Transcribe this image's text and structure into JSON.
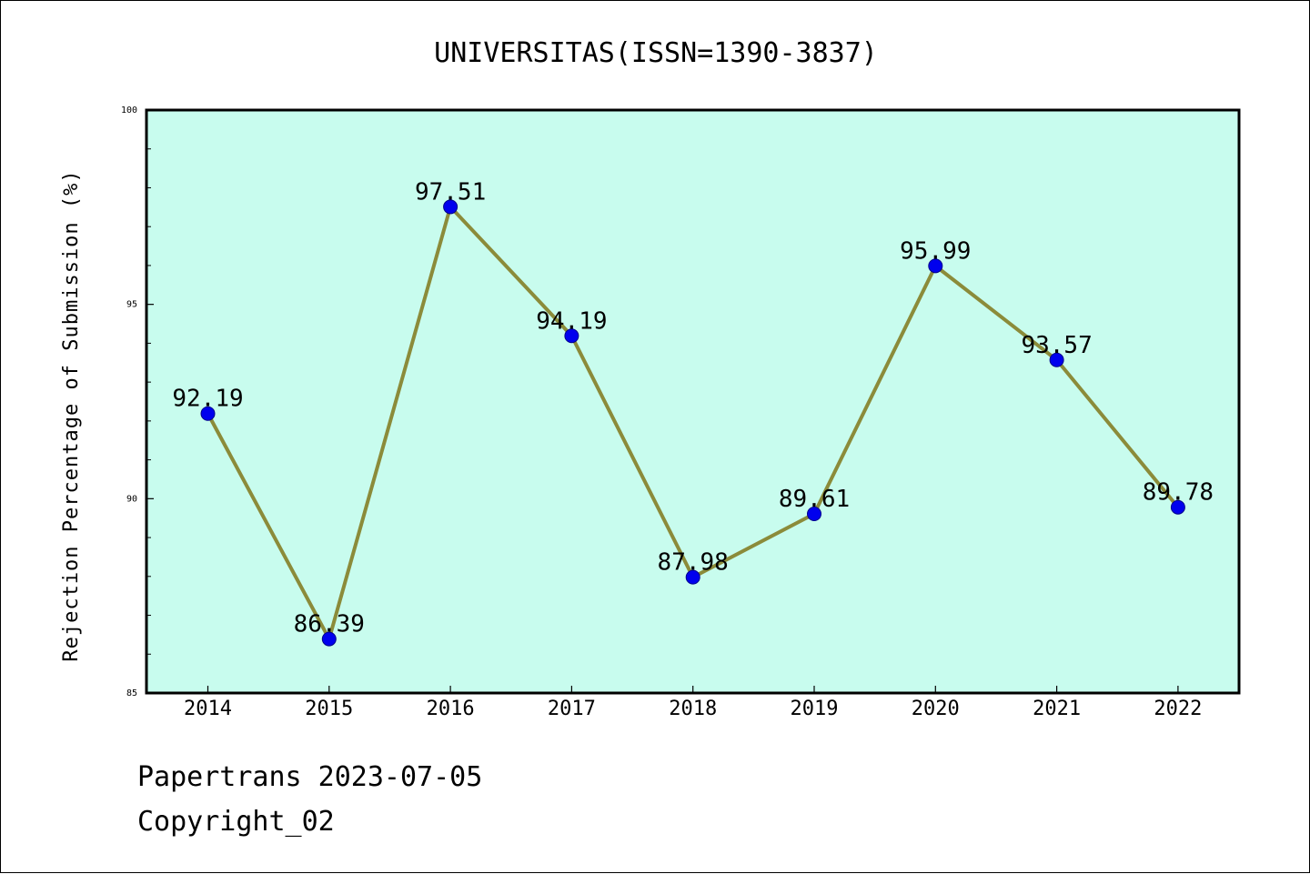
{
  "chart_data": {
    "type": "line",
    "title": "UNIVERSITAS(ISSN=1390-3837)",
    "xlabel": "",
    "ylabel": "Rejection Percentage of Submission (%)",
    "categories": [
      "2014",
      "2015",
      "2016",
      "2017",
      "2018",
      "2019",
      "2020",
      "2021",
      "2022"
    ],
    "values": [
      92.19,
      86.39,
      97.51,
      94.19,
      87.98,
      89.61,
      95.99,
      93.57,
      89.78
    ],
    "data_labels": [
      "92.19",
      "86.39",
      "97.51",
      "94.19",
      "87.98",
      "89.61",
      "95.99",
      "93.57",
      "89.78"
    ],
    "ylim": [
      85,
      100
    ],
    "yticks": [
      "85",
      "90",
      "95",
      "100"
    ],
    "grid": false,
    "colors": {
      "plot_background": "#c8fcee",
      "line": "#8b8b3a",
      "marker": "#0000ee",
      "marker_edge": "#00008b"
    }
  },
  "footer": {
    "source": "Papertrans 2023-07-05",
    "copyright": "Copyright_02"
  }
}
